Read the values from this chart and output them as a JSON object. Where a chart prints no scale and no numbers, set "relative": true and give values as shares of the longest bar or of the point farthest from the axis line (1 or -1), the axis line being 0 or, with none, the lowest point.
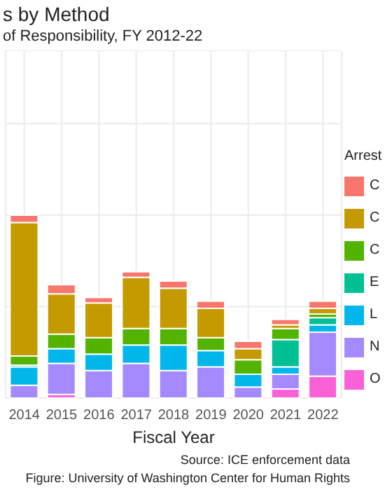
{
  "chart_data": {
    "type": "bar",
    "title": "s by Method",
    "subtitle": "of Responsibility, FY 2012-22",
    "xlabel": "Fiscal Year",
    "legend_title": "Arrest",
    "annotations": [
      "Source: ICE enforcement data",
      "Figure: University of Washington Center for Human Rights"
    ],
    "categories": [
      "2014",
      "2015",
      "2016",
      "2017",
      "2018",
      "2019",
      "2020",
      "2021",
      "2022"
    ],
    "stacked": true,
    "relative": true,
    "grid": true,
    "legend": "right",
    "series": [
      {
        "name": "O",
        "color": "#fb61d7",
        "values": [
          0,
          0.02,
          null,
          0,
          0,
          0,
          0,
          0.05,
          0.12
        ]
      },
      {
        "name": "N",
        "color": "#a58aff",
        "values": [
          0.07,
          0.17,
          0.15,
          0.19,
          0.15,
          0.17,
          0.06,
          0.08,
          0.24
        ]
      },
      {
        "name": "L",
        "color": "#00b6eb",
        "values": [
          0.1,
          0.08,
          0.09,
          0.1,
          0.14,
          0.09,
          0.07,
          0.04,
          0.04
        ]
      },
      {
        "name": "E",
        "color": "#00c094",
        "values": [
          0.01,
          0,
          0,
          null,
          0,
          0,
          0,
          0.15,
          0.04
        ]
      },
      {
        "name": "C",
        "color": "#53b400",
        "values": [
          0.05,
          0.08,
          0.09,
          0.09,
          0.09,
          0.07,
          0.08,
          0.06,
          0.02
        ]
      },
      {
        "name": "C",
        "color": "#c49a00",
        "values": [
          0.73,
          0.22,
          0.19,
          0.28,
          0.22,
          0.16,
          0.06,
          0.02,
          0.03
        ]
      },
      {
        "name": "C",
        "color": "#f8766d",
        "values": [
          0.04,
          0.05,
          0.03,
          0.03,
          0.04,
          0.04,
          0.04,
          0.03,
          0.04
        ]
      }
    ]
  }
}
